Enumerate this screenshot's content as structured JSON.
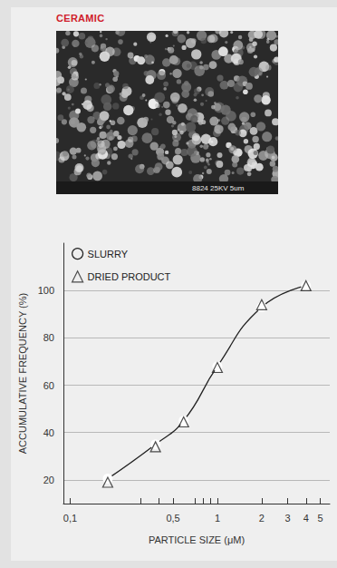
{
  "chart_data": {
    "type": "line",
    "title": "CERAMIC",
    "micrograph_label": "8824 25KV 5um",
    "x_label": "PARTICLE SIZE (μM)",
    "y_label": "ACCUMULATIVE FREQUENCY (%)",
    "series": [
      {
        "name": "SLURRY",
        "type": "line",
        "marker": "circle",
        "line_style": "solid",
        "color": "#222222",
        "x": [
          0.18,
          0.38,
          0.59,
          1.0,
          2.0,
          4.0
        ],
        "values": [
          20.5,
          35,
          45,
          68,
          93,
          102
        ]
      },
      {
        "name": "DRIED PRODUCT",
        "type": "scatter",
        "marker": "triangle",
        "color": "#222222",
        "x": [
          0.18,
          0.38,
          0.59,
          1.0,
          2.0,
          4.0
        ],
        "values": [
          19,
          34,
          44.5,
          67.5,
          94,
          102
        ]
      }
    ],
    "log": "x",
    "xlim": [
      0.09,
      5.8
    ],
    "xticks": [
      {
        "value": 0.1,
        "label": "0,1"
      },
      {
        "value": 0.5,
        "label": "0,5"
      },
      1,
      2,
      3,
      4,
      5
    ],
    "minor_xticks": [
      0.3,
      0.4,
      0.7,
      0.8,
      0.9
    ],
    "ylim": [
      10,
      120
    ],
    "yticks": [
      20,
      40,
      60,
      80,
      100
    ],
    "grid": true,
    "legend": "upper left"
  }
}
